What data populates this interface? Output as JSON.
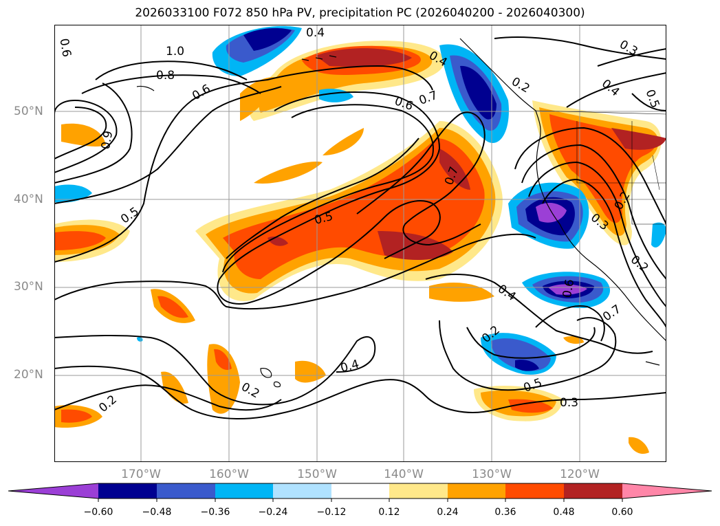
{
  "title": "2026033100 F072 850 hPa PV, precipitation PC (2026040200 - 2026040300)",
  "axes": {
    "lat_labels": [
      "50°N",
      "40°N",
      "30°N",
      "20°N"
    ],
    "lon_labels": [
      "170°W",
      "160°W",
      "150°W",
      "140°W",
      "130°W",
      "120°W"
    ]
  },
  "colorbar": {
    "colors": [
      "#9b3fd6",
      "#000090",
      "#3a5acc",
      "#00b5f5",
      "#b0e2ff",
      "#ffffff",
      "#ffe88a",
      "#ffa200",
      "#ff4b00",
      "#b22222",
      "#ff86a8"
    ],
    "tick_labels": [
      "−0.60",
      "−0.48",
      "−0.36",
      "−0.24",
      "−0.12",
      "0.12",
      "0.24",
      "0.36",
      "0.48",
      "0.60"
    ]
  },
  "contour_labels": [
    {
      "text": "1.0",
      "rot": 0
    },
    {
      "text": "0.8",
      "rot": 0
    },
    {
      "text": "0.6",
      "rot": -30
    },
    {
      "text": "0.4",
      "rot": 0
    },
    {
      "text": "0.9",
      "rot": -80
    },
    {
      "text": "0.6",
      "rot": 80
    },
    {
      "text": "0.6",
      "rot": 20
    },
    {
      "text": "0.7",
      "rot": -20
    },
    {
      "text": "0.4",
      "rot": 30
    },
    {
      "text": "0.2",
      "rot": 30
    },
    {
      "text": "0.3",
      "rot": 30
    },
    {
      "text": "0.4",
      "rot": 40
    },
    {
      "text": "0.5",
      "rot": 70
    },
    {
      "text": "0.5",
      "rot": -35
    },
    {
      "text": "0.5",
      "rot": -15
    },
    {
      "text": "0.7",
      "rot": -70
    },
    {
      "text": "0.2",
      "rot": -60
    },
    {
      "text": "0.3",
      "rot": 40
    },
    {
      "text": "0.6",
      "rot": -80
    },
    {
      "text": "0.2",
      "rot": 40
    },
    {
      "text": "0.7",
      "rot": -35
    },
    {
      "text": "0.4",
      "rot": 35
    },
    {
      "text": "0.2",
      "rot": -40
    },
    {
      "text": "0.4",
      "rot": -15
    },
    {
      "text": "0.5",
      "rot": -20
    },
    {
      "text": "0.3",
      "rot": 0
    },
    {
      "text": "0.2",
      "rot": 30
    },
    {
      "text": "0.2",
      "rot": -40
    }
  ]
}
